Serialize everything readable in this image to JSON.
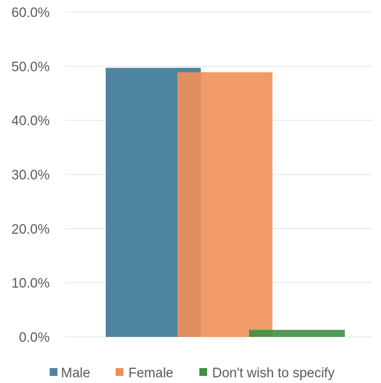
{
  "chart_data": {
    "type": "bar",
    "overlapping_bars": true,
    "ylim": [
      0,
      60
    ],
    "y_ticks": [
      "0.0%",
      "10.0%",
      "20.0%",
      "30.0%",
      "40.0%",
      "50.0%",
      "60.0%"
    ],
    "y_tick_values": [
      0,
      10,
      20,
      30,
      40,
      50,
      60
    ],
    "grid": true,
    "legend_position": "bottom",
    "series": [
      {
        "name": "Male",
        "value": 49.7,
        "color": "#4f84a0"
      },
      {
        "name": "Female",
        "value": 48.9,
        "color": "#ee9059"
      },
      {
        "name": "Don't wish to specify",
        "value": 1.3,
        "color": "#3f8f44"
      }
    ]
  }
}
